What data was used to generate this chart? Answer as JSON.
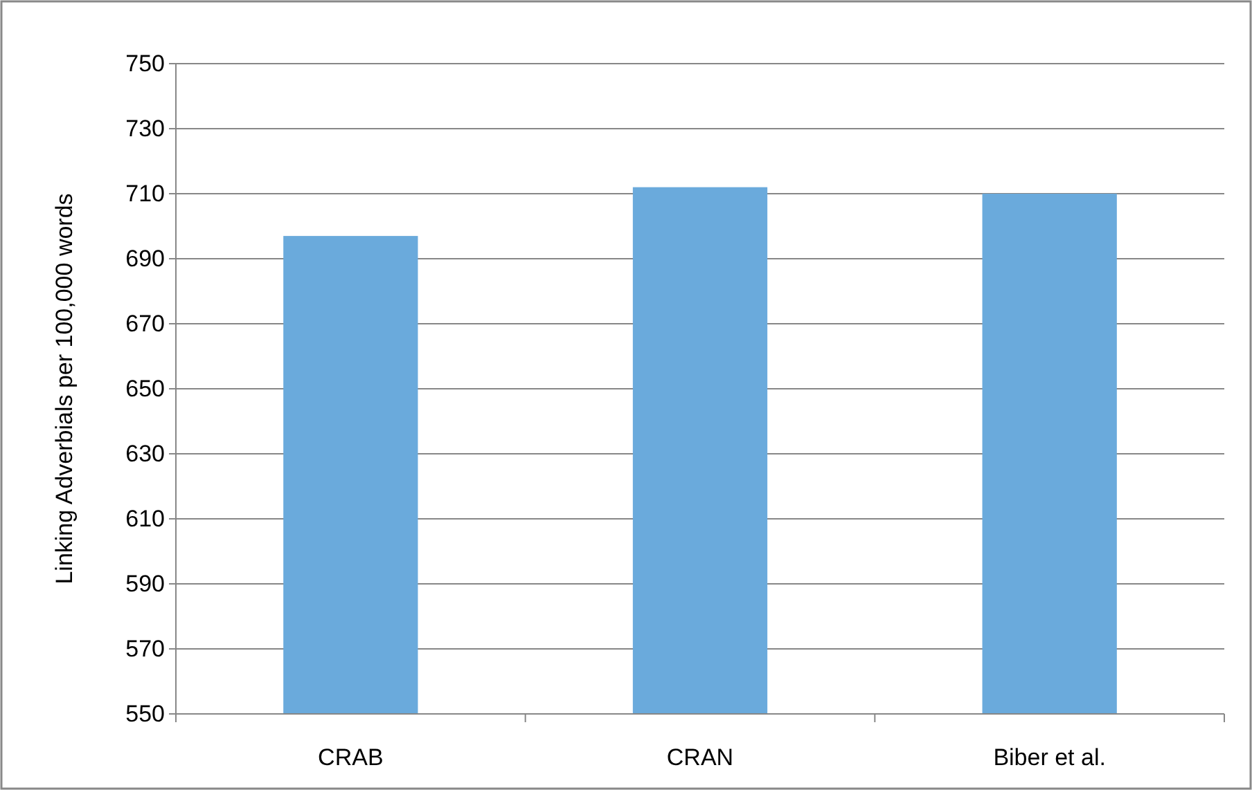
{
  "chart_data": {
    "type": "bar",
    "ylabel": "Linking Adverbials per 100,000 words",
    "categories": [
      "CRAB",
      "CRAN",
      "Biber et al."
    ],
    "values": [
      697,
      712,
      710
    ],
    "color": "#6aaadc",
    "ylim": [
      550,
      750
    ],
    "yticks": [
      550,
      570,
      590,
      610,
      630,
      650,
      670,
      690,
      710,
      730,
      750
    ],
    "grid": "y"
  }
}
